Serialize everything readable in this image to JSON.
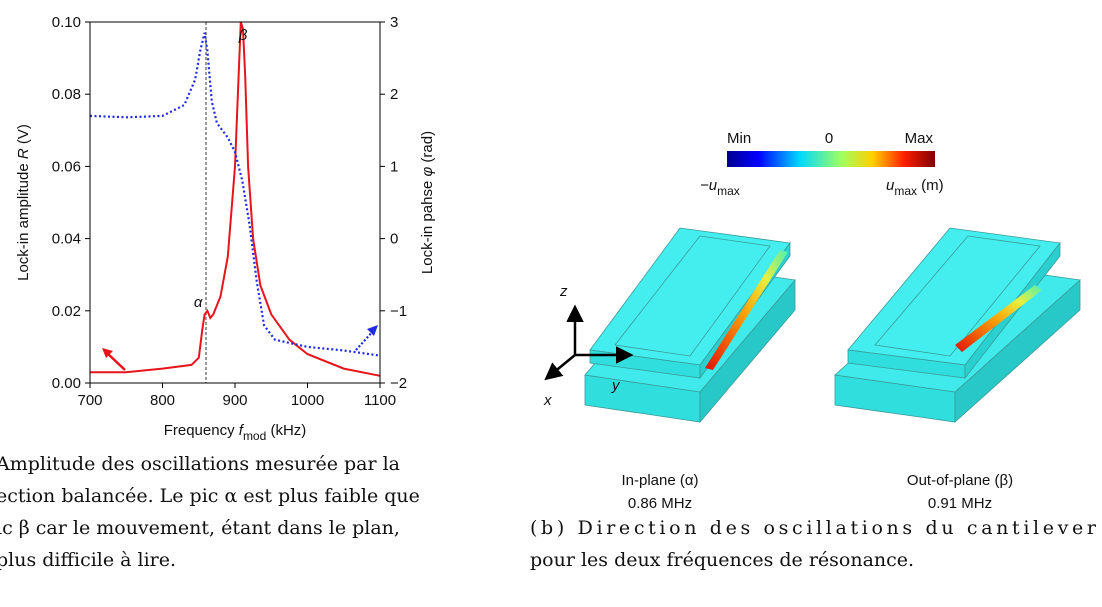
{
  "chart_data": {
    "type": "line",
    "xlabel": [
      "Frequency ",
      "f",
      "mod",
      " (kHz)"
    ],
    "ylabel": [
      "Lock-in amplitude ",
      "R",
      " (V)"
    ],
    "y2label": [
      "Lock-in pahse ",
      "φ",
      " (rad)"
    ],
    "xlim": [
      700,
      1100
    ],
    "xticks": [
      700,
      800,
      900,
      1000,
      1100
    ],
    "ylim": [
      0,
      0.1
    ],
    "yticks": [
      {
        "value": 0,
        "label": "0.00"
      },
      {
        "value": 0.02,
        "label": "0.02"
      },
      {
        "value": 0.04,
        "label": "0.04"
      },
      {
        "value": 0.06,
        "label": "0.06"
      },
      {
        "value": 0.08,
        "label": "0.08"
      },
      {
        "value": 0.1,
        "label": "0.10"
      }
    ],
    "y2lim": [
      -2,
      3
    ],
    "y2ticks": [
      {
        "value": -2,
        "label": "−2"
      },
      {
        "value": -1,
        "label": "−1"
      },
      0,
      1,
      2,
      3
    ],
    "series": [
      {
        "color": "#e8141c",
        "dash": false,
        "x": [
          700,
          750,
          800,
          840,
          850,
          855,
          858,
          862,
          866,
          870,
          880,
          890,
          900,
          905,
          908,
          911,
          914,
          918,
          925,
          935,
          950,
          975,
          1000,
          1050,
          1100
        ],
        "values": [
          0.003,
          0.003,
          0.004,
          0.005,
          0.007,
          0.015,
          0.019,
          0.02,
          0.018,
          0.019,
          0.024,
          0.035,
          0.06,
          0.085,
          0.1,
          0.098,
          0.085,
          0.06,
          0.04,
          0.027,
          0.019,
          0.012,
          0.008,
          0.004,
          0.002
        ]
      },
      {
        "color": "#1e28e8",
        "dash": true,
        "axis": "y2",
        "x": [
          700,
          750,
          800,
          830,
          845,
          852,
          858,
          862,
          868,
          875,
          890,
          900,
          910,
          920,
          930,
          940,
          955,
          1000,
          1050,
          1100
        ],
        "values": [
          1.7,
          1.68,
          1.7,
          1.85,
          2.2,
          2.6,
          2.85,
          2.6,
          1.9,
          1.6,
          1.4,
          1.2,
          0.8,
          0.2,
          -0.6,
          -1.2,
          -1.4,
          -1.5,
          -1.55,
          -1.62
        ]
      }
    ],
    "reference_line_x": 860,
    "annotations": [
      {
        "text": "α",
        "x": 855,
        "y": 0.021
      },
      {
        "text": "β",
        "x": 917,
        "y": 0.095
      }
    ]
  },
  "figure_b": {
    "colorbar": {
      "min": "Min",
      "zero": "0",
      "max": "Max",
      "min_symbol": "−u",
      "min_symbol_sub": "max",
      "max_symbol": "u",
      "max_symbol_sub": "max",
      "max_unit": " (m)"
    },
    "axes": {
      "z": "z",
      "y": "y",
      "x": "x"
    },
    "modes": [
      {
        "name": "In-plane (α)",
        "freq": "0.86 MHz"
      },
      {
        "name": "Out-of-plane (β)",
        "freq": "0.91 MHz"
      }
    ]
  },
  "captions": {
    "a": [
      "Amplitude des oscillations mesurée par la",
      "ection balancée. Le pic α est plus faible que",
      "ic β car le mouvement, étant dans le plan,",
      "plus difficile à lire."
    ],
    "b": [
      "(b) Direction des oscillations du cantilever",
      "pour les deux fréquences de résonance."
    ]
  }
}
